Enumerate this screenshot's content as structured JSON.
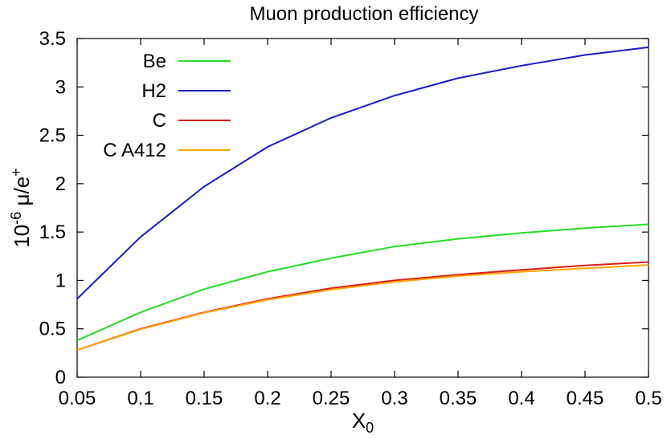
{
  "chart_data": {
    "type": "line",
    "title": "Muon production efficiency",
    "xlabel": {
      "base": "X",
      "sub": "0"
    },
    "ylabel": {
      "prefix": "10",
      "exp": "-6",
      "unit": " μ/e",
      "unit_sup": "+"
    },
    "xlim": [
      0.05,
      0.5
    ],
    "ylim": [
      0,
      3.5
    ],
    "x_ticks": [
      "0.05",
      "0.1",
      "0.15",
      "0.2",
      "0.25",
      "0.3",
      "0.35",
      "0.4",
      "0.45",
      "0.5"
    ],
    "y_ticks": [
      "0",
      "0.5",
      "1",
      "1.5",
      "2",
      "2.5",
      "3",
      "3.5"
    ],
    "grid": false,
    "legend_position": "top-left",
    "x": [
      0.05,
      0.1,
      0.15,
      0.2,
      0.25,
      0.3,
      0.35,
      0.4,
      0.45,
      0.5
    ],
    "series": [
      {
        "name": "Be",
        "color": "#22dd22",
        "values": [
          0.38,
          0.67,
          0.91,
          1.09,
          1.23,
          1.35,
          1.43,
          1.49,
          1.54,
          1.58
        ]
      },
      {
        "name": "H2",
        "color": "#1a1acc",
        "values": [
          0.81,
          1.45,
          1.97,
          2.38,
          2.68,
          2.91,
          3.09,
          3.22,
          3.33,
          3.41
        ]
      },
      {
        "name": "C",
        "color": "#dd1a1a",
        "values": [
          0.28,
          0.5,
          0.67,
          0.81,
          0.92,
          1.0,
          1.06,
          1.11,
          1.155,
          1.19
        ]
      },
      {
        "name": "C A412",
        "color": "#ffa500",
        "values": [
          0.28,
          0.495,
          0.665,
          0.8,
          0.905,
          0.985,
          1.045,
          1.09,
          1.125,
          1.16
        ]
      }
    ]
  }
}
